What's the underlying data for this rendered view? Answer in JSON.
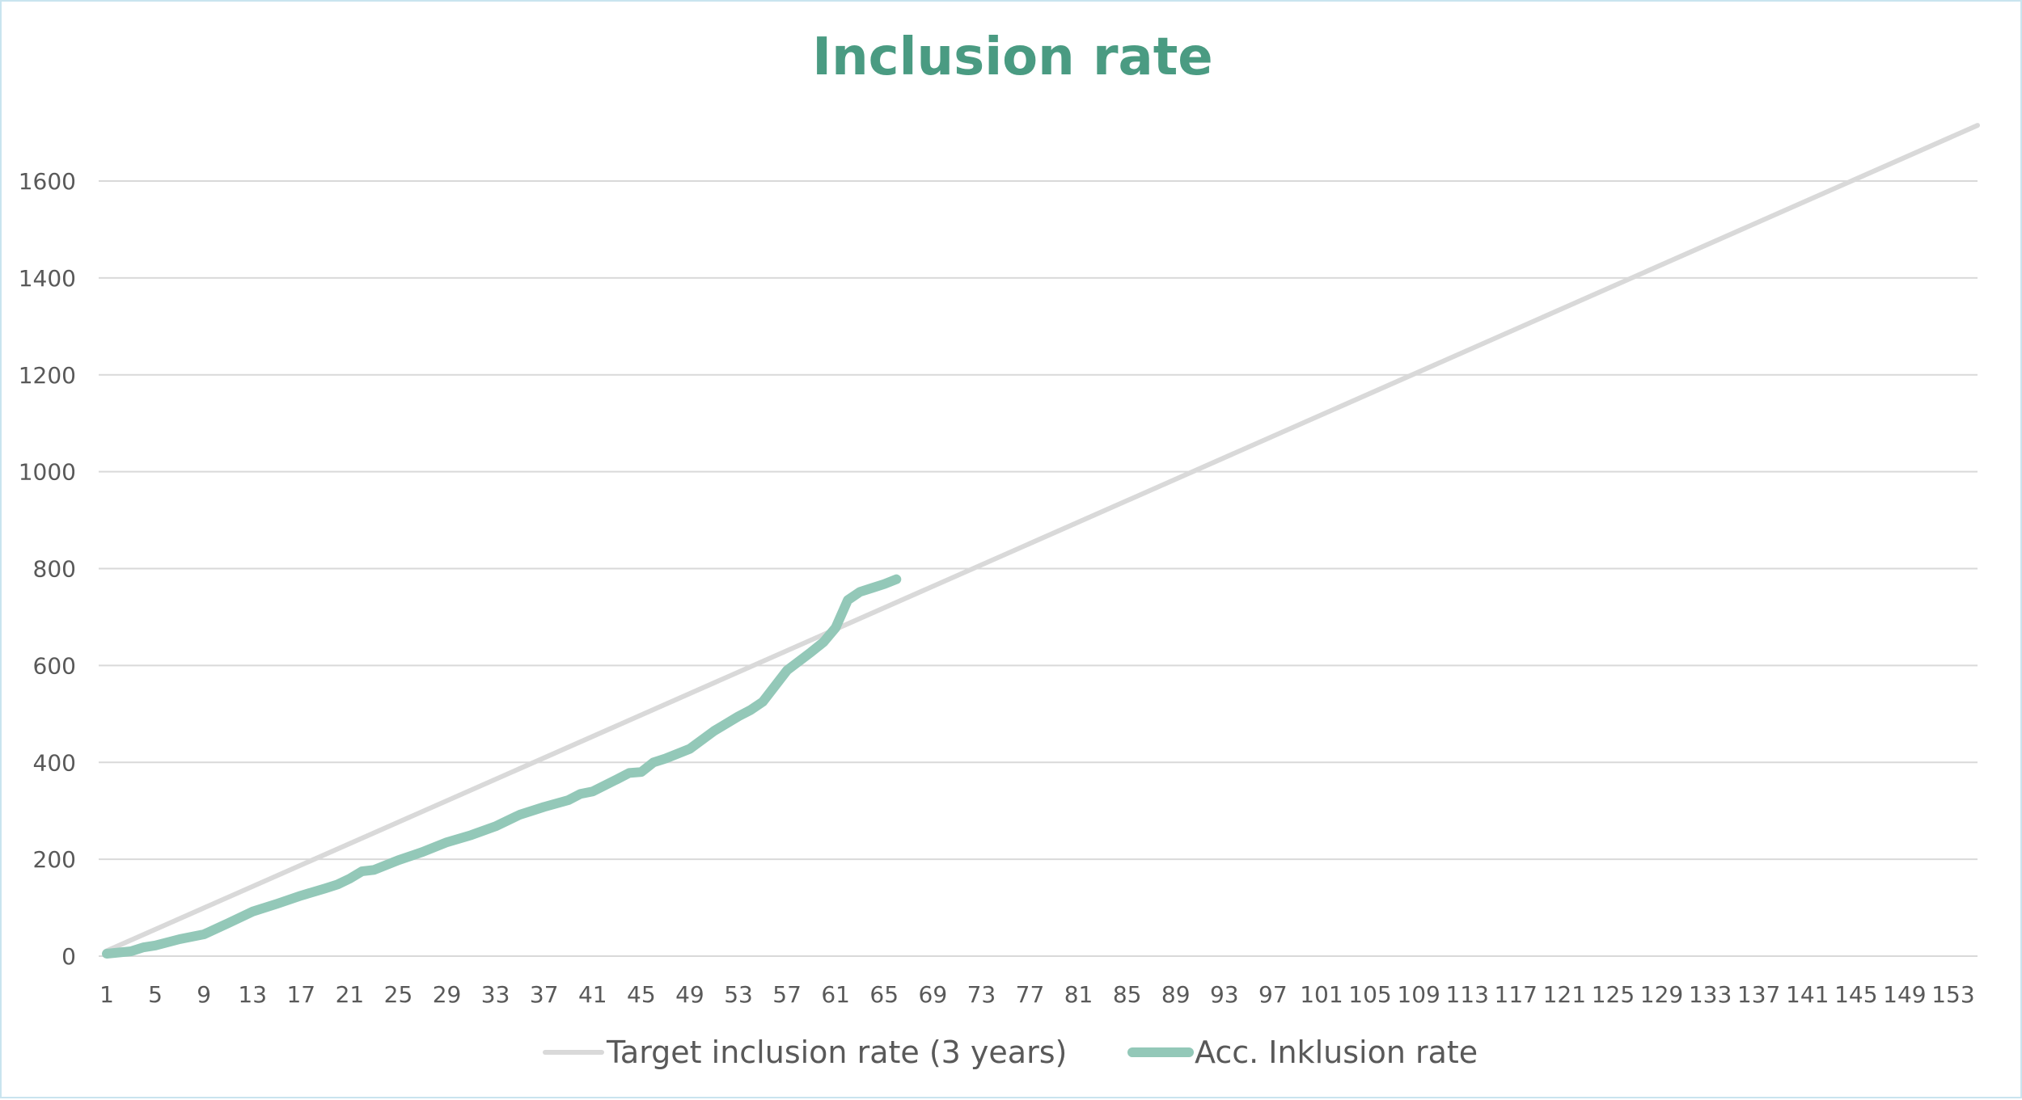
{
  "chart_data": {
    "type": "line",
    "title": "Inclusion rate",
    "xlabel": "",
    "ylabel": "",
    "ylim": [
      0,
      1600
    ],
    "y_ticks": [
      0,
      200,
      400,
      600,
      800,
      1000,
      1200,
      1400,
      1600
    ],
    "x_range": [
      1,
      155
    ],
    "x_tick_labels": [
      1,
      5,
      9,
      13,
      17,
      21,
      25,
      29,
      33,
      37,
      41,
      45,
      49,
      53,
      57,
      61,
      65,
      69,
      73,
      77,
      81,
      85,
      89,
      93,
      97,
      101,
      105,
      109,
      113,
      117,
      121,
      125,
      129,
      133,
      137,
      141,
      145,
      149,
      153
    ],
    "grid": "horizontal",
    "legend_position": "bottom",
    "series": [
      {
        "name": "Target inclusion rate (3 years)",
        "color": "#d9d9d9",
        "x": [
          1,
          155
        ],
        "values": [
          11,
          1715
        ]
      },
      {
        "name": "Acc. Inklusion rate",
        "color": "#93c8b8",
        "x": [
          1,
          3,
          4,
          5,
          7,
          9,
          11,
          13,
          15,
          17,
          19,
          20,
          21,
          22,
          23,
          25,
          27,
          29,
          31,
          33,
          35,
          37,
          39,
          40,
          41,
          43,
          44,
          45,
          46,
          47,
          49,
          51,
          53,
          54,
          55,
          57,
          59,
          60,
          61,
          62,
          63,
          64,
          65,
          66
        ],
        "values": [
          5,
          10,
          18,
          22,
          35,
          45,
          68,
          92,
          108,
          125,
          140,
          148,
          160,
          175,
          178,
          198,
          215,
          235,
          250,
          268,
          292,
          308,
          322,
          335,
          340,
          365,
          378,
          380,
          400,
          408,
          428,
          465,
          495,
          508,
          525,
          590,
          628,
          648,
          678,
          735,
          752,
          760,
          768,
          778
        ]
      }
    ]
  }
}
